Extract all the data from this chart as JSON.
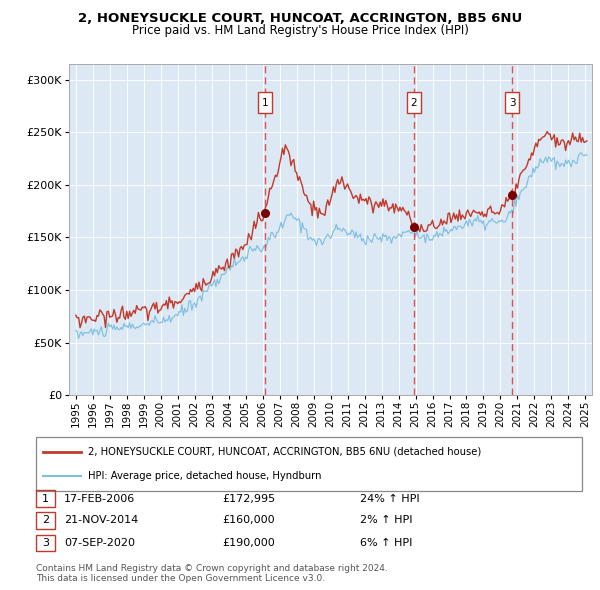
{
  "title1": "2, HONEYSUCKLE COURT, HUNCOAT, ACCRINGTON, BB5 6NU",
  "title2": "Price paid vs. HM Land Registry's House Price Index (HPI)",
  "xlim": [
    1994.6,
    2025.4
  ],
  "ylim": [
    0,
    315000
  ],
  "yticks": [
    0,
    50000,
    100000,
    150000,
    200000,
    250000,
    300000
  ],
  "ytick_labels": [
    "£0",
    "£50K",
    "£100K",
    "£150K",
    "£200K",
    "£250K",
    "£300K"
  ],
  "xtick_years": [
    1995,
    1996,
    1997,
    1998,
    1999,
    2000,
    2001,
    2002,
    2003,
    2004,
    2005,
    2006,
    2007,
    2008,
    2009,
    2010,
    2011,
    2012,
    2013,
    2014,
    2015,
    2016,
    2017,
    2018,
    2019,
    2020,
    2021,
    2022,
    2023,
    2024,
    2025
  ],
  "sale_dates": [
    2006.12,
    2014.89,
    2020.69
  ],
  "sale_prices": [
    172995,
    160000,
    190000
  ],
  "sale_labels": [
    "1",
    "2",
    "3"
  ],
  "bg_color": "#dce9f5",
  "line_color_red": "#c0392b",
  "line_color_blue": "#7fbfdf",
  "dot_color": "#7b0000",
  "vline_color": "#e05050",
  "legend_label_red": "2, HONEYSUCKLE COURT, HUNCOAT, ACCRINGTON, BB5 6NU (detached house)",
  "legend_label_blue": "HPI: Average price, detached house, Hyndburn",
  "table_rows": [
    {
      "num": "1",
      "date": "17-FEB-2006",
      "price": "£172,995",
      "hpi": "24% ↑ HPI"
    },
    {
      "num": "2",
      "date": "21-NOV-2014",
      "price": "£160,000",
      "hpi": "2% ↑ HPI"
    },
    {
      "num": "3",
      "date": "07-SEP-2020",
      "price": "£190,000",
      "hpi": "6% ↑ HPI"
    }
  ],
  "footnote": "Contains HM Land Registry data © Crown copyright and database right 2024.\nThis data is licensed under the Open Government Licence v3.0.",
  "blue_anchors_x": [
    1995.0,
    1996.0,
    1997.0,
    1998.0,
    1999.0,
    2000.0,
    2001.0,
    2002.0,
    2003.0,
    2004.0,
    2005.0,
    2006.0,
    2007.0,
    2007.5,
    2008.0,
    2008.5,
    2009.0,
    2009.5,
    2010.0,
    2010.5,
    2011.0,
    2011.5,
    2012.0,
    2012.5,
    2013.0,
    2013.5,
    2014.0,
    2014.5,
    2014.89,
    2015.3,
    2015.8,
    2016.0,
    2016.5,
    2017.0,
    2017.5,
    2018.0,
    2018.5,
    2019.0,
    2019.5,
    2020.0,
    2020.5,
    2021.0,
    2021.5,
    2022.0,
    2022.5,
    2023.0,
    2023.5,
    2024.0,
    2024.5,
    2025.0
  ],
  "blue_anchors_y": [
    58000,
    60000,
    62000,
    65000,
    67000,
    70000,
    76000,
    88000,
    105000,
    120000,
    133000,
    140000,
    158000,
    170000,
    168000,
    157000,
    148000,
    145000,
    153000,
    158000,
    155000,
    152000,
    148000,
    150000,
    150000,
    148000,
    152000,
    155000,
    157000,
    153000,
    147000,
    150000,
    153000,
    157000,
    160000,
    163000,
    165000,
    163000,
    165000,
    163000,
    170000,
    185000,
    200000,
    215000,
    225000,
    222000,
    218000,
    220000,
    225000,
    228000
  ],
  "red_anchors_x": [
    1995.0,
    1995.5,
    1996.0,
    1996.5,
    1997.0,
    1997.5,
    1998.0,
    1998.5,
    1999.0,
    1999.5,
    2000.0,
    2000.5,
    2001.0,
    2001.5,
    2002.0,
    2002.5,
    2003.0,
    2003.5,
    2004.0,
    2004.5,
    2005.0,
    2005.5,
    2005.8,
    2006.12,
    2006.5,
    2007.0,
    2007.3,
    2007.6,
    2008.0,
    2008.3,
    2008.6,
    2009.0,
    2009.3,
    2009.6,
    2010.0,
    2010.3,
    2010.6,
    2011.0,
    2011.5,
    2012.0,
    2012.5,
    2013.0,
    2013.5,
    2014.0,
    2014.5,
    2014.89,
    2015.0,
    2015.3,
    2015.6,
    2016.0,
    2016.5,
    2017.0,
    2017.5,
    2018.0,
    2018.5,
    2019.0,
    2019.5,
    2020.0,
    2020.69,
    2021.0,
    2021.5,
    2022.0,
    2022.5,
    2022.8,
    2023.0,
    2023.5,
    2024.0,
    2024.5,
    2025.0
  ],
  "red_anchors_y": [
    73000,
    72000,
    74000,
    76000,
    75000,
    77000,
    78000,
    80000,
    79000,
    82000,
    84000,
    86000,
    90000,
    94000,
    100000,
    107000,
    115000,
    120000,
    128000,
    135000,
    142000,
    160000,
    168000,
    172995,
    195000,
    220000,
    235000,
    228000,
    210000,
    198000,
    185000,
    178000,
    173000,
    170000,
    185000,
    200000,
    205000,
    198000,
    190000,
    183000,
    182000,
    182000,
    180000,
    178000,
    175000,
    160000,
    165000,
    158000,
    155000,
    160000,
    165000,
    170000,
    168000,
    172000,
    175000,
    173000,
    175000,
    172000,
    190000,
    200000,
    215000,
    232000,
    248000,
    252000,
    245000,
    238000,
    240000,
    245000,
    243000
  ]
}
